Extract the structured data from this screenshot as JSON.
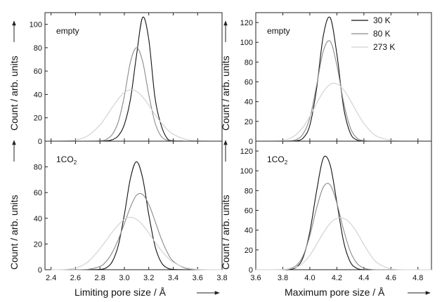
{
  "chart_data": [
    {
      "id": "top-left",
      "type": "line",
      "annotation": "empty",
      "ylabel": "Count / arb. units",
      "xlabel": "",
      "xlim": [
        2.35,
        3.8
      ],
      "ylim": [
        0,
        110
      ],
      "xticks": [
        2.4,
        2.6,
        2.8,
        3.0,
        3.2,
        3.4,
        3.6,
        3.8
      ],
      "xtick_labels": [],
      "yticks": [
        0,
        20,
        40,
        60,
        80,
        100
      ],
      "ytick_labels": [
        "0",
        "20",
        "40",
        "60",
        "80",
        "100"
      ],
      "x": [
        2.4,
        2.5,
        2.6,
        2.7,
        2.8,
        2.85,
        2.9,
        2.95,
        3.0,
        3.05,
        3.1,
        3.15,
        3.2,
        3.25,
        3.3,
        3.35,
        3.4,
        3.5,
        3.6,
        3.7,
        3.8
      ],
      "series": [
        {
          "values": [
            0,
            0,
            0,
            0,
            0,
            0.3,
            1.2,
            4.6,
            14.3,
            36.1,
            73.6,
            106,
            87.1,
            38,
            14.1,
            2.4,
            0.3,
            0,
            0,
            0,
            0
          ]
        },
        {
          "values": [
            0,
            0,
            0,
            0,
            0.3,
            1.5,
            5.6,
            16.5,
            38.7,
            67.9,
            80,
            68.2,
            39.9,
            16.2,
            4.4,
            0.8,
            0.1,
            0,
            0,
            0,
            0
          ]
        },
        {
          "values": [
            0,
            0.1,
            1,
            4.6,
            13.8,
            20.9,
            28.8,
            36.2,
            41.7,
            44,
            42.6,
            37.8,
            30.8,
            23.1,
            16,
            10.2,
            6,
            1.6,
            0.3,
            0,
            0
          ]
        }
      ]
    },
    {
      "id": "top-right",
      "type": "line",
      "annotation": "empty",
      "ylabel": "Count / arb. units",
      "xlabel": "",
      "xlim": [
        3.6,
        4.9
      ],
      "ylim": [
        0,
        130
      ],
      "xticks": [
        3.6,
        3.8,
        4.0,
        4.2,
        4.4,
        4.6,
        4.8
      ],
      "xtick_labels": [],
      "yticks": [
        0,
        20,
        40,
        60,
        80,
        100,
        120
      ],
      "ytick_labels": [
        "0",
        "20",
        "40",
        "60",
        "80",
        "100",
        "120"
      ],
      "x": [
        3.6,
        3.7,
        3.8,
        3.85,
        3.9,
        3.95,
        4.0,
        4.05,
        4.1,
        4.15,
        4.2,
        4.25,
        4.3,
        4.35,
        4.4,
        4.45,
        4.5,
        4.6,
        4.7,
        4.8,
        4.9
      ],
      "series": [
        {
          "values": [
            0,
            0,
            0,
            0,
            0.4,
            3.1,
            16,
            53,
            107,
            125,
            88,
            34,
            8,
            1.1,
            0.1,
            0,
            0,
            0,
            0,
            0,
            0
          ]
        },
        {
          "values": [
            0,
            0,
            0,
            0.3,
            1.7,
            7.3,
            23.4,
            56.2,
            91.4,
            101,
            76.8,
            39.2,
            13.4,
            3,
            0.5,
            0,
            0,
            0,
            0,
            0,
            0
          ]
        },
        {
          "values": [
            0,
            0,
            0.6,
            2.6,
            6.8,
            14.2,
            25.1,
            38,
            50,
            57.4,
            58,
            52,
            41.3,
            28.9,
            18,
            9.8,
            4.7,
            0.7,
            0,
            0,
            0
          ]
        }
      ]
    },
    {
      "id": "bottom-left",
      "type": "line",
      "annotation": "1CO",
      "annotation_sub": "2",
      "ylabel": "Count / arb. units",
      "xlabel": "Limiting pore size / Å",
      "xlim": [
        2.35,
        3.8
      ],
      "ylim": [
        0,
        100
      ],
      "xticks": [
        2.4,
        2.6,
        2.8,
        3.0,
        3.2,
        3.4,
        3.6,
        3.8
      ],
      "xtick_labels": [
        "2.4",
        "2.6",
        "2.8",
        "3.0",
        "3.2",
        "3.4",
        "3.6",
        "3.8"
      ],
      "yticks": [
        0,
        20,
        40,
        60,
        80
      ],
      "ytick_labels": [
        "0",
        "20",
        "40",
        "60",
        "80"
      ],
      "x": [
        2.4,
        2.5,
        2.6,
        2.7,
        2.8,
        2.85,
        2.9,
        2.95,
        3.0,
        3.05,
        3.1,
        3.15,
        3.2,
        3.25,
        3.3,
        3.35,
        3.4,
        3.5,
        3.6,
        3.7,
        3.8
      ],
      "series": [
        {
          "values": [
            0,
            0,
            0,
            0,
            0.2,
            1.4,
            6.1,
            18.8,
            42.9,
            71.3,
            84,
            71.3,
            42.9,
            18.8,
            6,
            1.4,
            0.2,
            0,
            0,
            0,
            0
          ]
        },
        {
          "values": [
            0,
            0,
            0,
            0.3,
            2.5,
            6.3,
            13.2,
            23.4,
            35.9,
            48.8,
            58,
            58.5,
            50.9,
            38.2,
            24.7,
            13.8,
            6.6,
            1.1,
            0.1,
            0,
            0
          ]
        },
        {
          "values": [
            0,
            0.1,
            1.3,
            5.9,
            16.3,
            22.6,
            29.1,
            34.8,
            39.2,
            40.8,
            39.2,
            34.8,
            28.6,
            21.7,
            15.2,
            9.8,
            5.8,
            1.6,
            0.3,
            0,
            0
          ]
        }
      ]
    },
    {
      "id": "bottom-right",
      "type": "line",
      "annotation": "1CO",
      "annotation_sub": "2",
      "ylabel": "Count / arb. units",
      "xlabel": "Maximum pore size / Å",
      "xlim": [
        3.6,
        4.9
      ],
      "ylim": [
        0,
        130
      ],
      "xticks": [
        3.6,
        3.8,
        4.0,
        4.2,
        4.4,
        4.6,
        4.8
      ],
      "xtick_labels": [
        "3.6",
        "3.8",
        "4.0",
        "4.2",
        "4.4",
        "4.6",
        "4.8"
      ],
      "yticks": [
        0,
        20,
        40,
        60,
        80,
        100,
        120
      ],
      "ytick_labels": [
        "0",
        "20",
        "40",
        "60",
        "80",
        "100",
        "120"
      ],
      "x": [
        3.6,
        3.7,
        3.8,
        3.85,
        3.9,
        3.95,
        4.0,
        4.05,
        4.1,
        4.15,
        4.2,
        4.25,
        4.3,
        4.35,
        4.4,
        4.45,
        4.5,
        4.6,
        4.7,
        4.8,
        4.9
      ],
      "series": [
        {
          "values": [
            0,
            0,
            0,
            0.3,
            2.4,
            12.3,
            38.2,
            79.3,
            113,
            106,
            68,
            28.4,
            7.7,
            1.3,
            0.1,
            0,
            0,
            0,
            0,
            0,
            0
          ]
        },
        {
          "values": [
            0,
            0,
            0.1,
            1,
            4.3,
            14.1,
            34.3,
            62,
            83.6,
            85.8,
            67.2,
            40.2,
            18.3,
            6.3,
            1.6,
            0.3,
            0,
            0,
            0,
            0,
            0
          ]
        },
        {
          "values": [
            0,
            0,
            0.2,
            0.8,
            2.5,
            6.8,
            14.6,
            25.6,
            37.2,
            46.9,
            51.9,
            51.9,
            46.9,
            37.2,
            25.6,
            14.6,
            6.8,
            0.8,
            0,
            0,
            0
          ]
        }
      ]
    }
  ],
  "legend": {
    "position": "top-right",
    "entries": [
      "30 K",
      "80 K",
      "273 K"
    ]
  },
  "colors": {
    "series": [
      "#111111",
      "#8a8a8a",
      "#cfcfcf"
    ],
    "axis": "#222222"
  }
}
